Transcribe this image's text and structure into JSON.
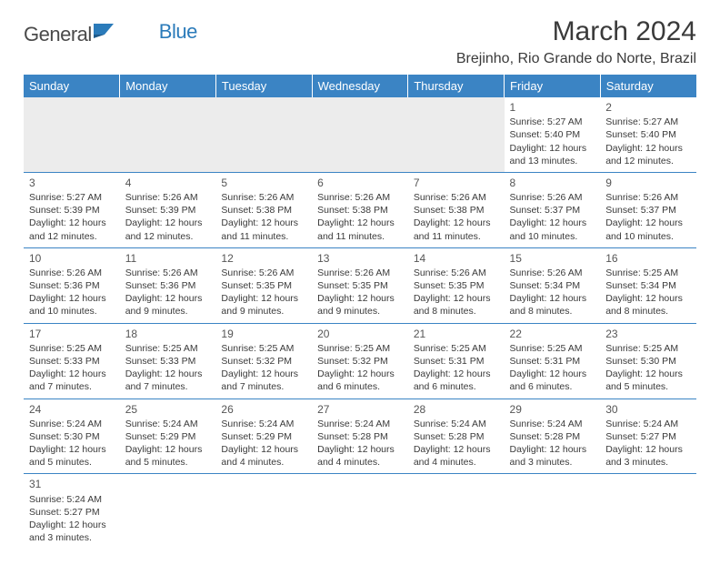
{
  "logo": {
    "text1": "General",
    "text2": "Blue"
  },
  "title": "March 2024",
  "location": "Brejinho, Rio Grande do Norte, Brazil",
  "columns": [
    "Sunday",
    "Monday",
    "Tuesday",
    "Wednesday",
    "Thursday",
    "Friday",
    "Saturday"
  ],
  "colors": {
    "header_bg": "#3b84c4",
    "header_text": "#ffffff",
    "logo_gray": "#4a4a4a",
    "logo_blue": "#2b7bba",
    "text": "#3a3a3a",
    "rule": "#3b84c4",
    "blank_row": "#ececec"
  },
  "weeks": [
    [
      null,
      null,
      null,
      null,
      null,
      {
        "day": "1",
        "sunrise": "Sunrise: 5:27 AM",
        "sunset": "Sunset: 5:40 PM",
        "daylight1": "Daylight: 12 hours",
        "daylight2": "and 13 minutes."
      },
      {
        "day": "2",
        "sunrise": "Sunrise: 5:27 AM",
        "sunset": "Sunset: 5:40 PM",
        "daylight1": "Daylight: 12 hours",
        "daylight2": "and 12 minutes."
      }
    ],
    [
      {
        "day": "3",
        "sunrise": "Sunrise: 5:27 AM",
        "sunset": "Sunset: 5:39 PM",
        "daylight1": "Daylight: 12 hours",
        "daylight2": "and 12 minutes."
      },
      {
        "day": "4",
        "sunrise": "Sunrise: 5:26 AM",
        "sunset": "Sunset: 5:39 PM",
        "daylight1": "Daylight: 12 hours",
        "daylight2": "and 12 minutes."
      },
      {
        "day": "5",
        "sunrise": "Sunrise: 5:26 AM",
        "sunset": "Sunset: 5:38 PM",
        "daylight1": "Daylight: 12 hours",
        "daylight2": "and 11 minutes."
      },
      {
        "day": "6",
        "sunrise": "Sunrise: 5:26 AM",
        "sunset": "Sunset: 5:38 PM",
        "daylight1": "Daylight: 12 hours",
        "daylight2": "and 11 minutes."
      },
      {
        "day": "7",
        "sunrise": "Sunrise: 5:26 AM",
        "sunset": "Sunset: 5:38 PM",
        "daylight1": "Daylight: 12 hours",
        "daylight2": "and 11 minutes."
      },
      {
        "day": "8",
        "sunrise": "Sunrise: 5:26 AM",
        "sunset": "Sunset: 5:37 PM",
        "daylight1": "Daylight: 12 hours",
        "daylight2": "and 10 minutes."
      },
      {
        "day": "9",
        "sunrise": "Sunrise: 5:26 AM",
        "sunset": "Sunset: 5:37 PM",
        "daylight1": "Daylight: 12 hours",
        "daylight2": "and 10 minutes."
      }
    ],
    [
      {
        "day": "10",
        "sunrise": "Sunrise: 5:26 AM",
        "sunset": "Sunset: 5:36 PM",
        "daylight1": "Daylight: 12 hours",
        "daylight2": "and 10 minutes."
      },
      {
        "day": "11",
        "sunrise": "Sunrise: 5:26 AM",
        "sunset": "Sunset: 5:36 PM",
        "daylight1": "Daylight: 12 hours",
        "daylight2": "and 9 minutes."
      },
      {
        "day": "12",
        "sunrise": "Sunrise: 5:26 AM",
        "sunset": "Sunset: 5:35 PM",
        "daylight1": "Daylight: 12 hours",
        "daylight2": "and 9 minutes."
      },
      {
        "day": "13",
        "sunrise": "Sunrise: 5:26 AM",
        "sunset": "Sunset: 5:35 PM",
        "daylight1": "Daylight: 12 hours",
        "daylight2": "and 9 minutes."
      },
      {
        "day": "14",
        "sunrise": "Sunrise: 5:26 AM",
        "sunset": "Sunset: 5:35 PM",
        "daylight1": "Daylight: 12 hours",
        "daylight2": "and 8 minutes."
      },
      {
        "day": "15",
        "sunrise": "Sunrise: 5:26 AM",
        "sunset": "Sunset: 5:34 PM",
        "daylight1": "Daylight: 12 hours",
        "daylight2": "and 8 minutes."
      },
      {
        "day": "16",
        "sunrise": "Sunrise: 5:25 AM",
        "sunset": "Sunset: 5:34 PM",
        "daylight1": "Daylight: 12 hours",
        "daylight2": "and 8 minutes."
      }
    ],
    [
      {
        "day": "17",
        "sunrise": "Sunrise: 5:25 AM",
        "sunset": "Sunset: 5:33 PM",
        "daylight1": "Daylight: 12 hours",
        "daylight2": "and 7 minutes."
      },
      {
        "day": "18",
        "sunrise": "Sunrise: 5:25 AM",
        "sunset": "Sunset: 5:33 PM",
        "daylight1": "Daylight: 12 hours",
        "daylight2": "and 7 minutes."
      },
      {
        "day": "19",
        "sunrise": "Sunrise: 5:25 AM",
        "sunset": "Sunset: 5:32 PM",
        "daylight1": "Daylight: 12 hours",
        "daylight2": "and 7 minutes."
      },
      {
        "day": "20",
        "sunrise": "Sunrise: 5:25 AM",
        "sunset": "Sunset: 5:32 PM",
        "daylight1": "Daylight: 12 hours",
        "daylight2": "and 6 minutes."
      },
      {
        "day": "21",
        "sunrise": "Sunrise: 5:25 AM",
        "sunset": "Sunset: 5:31 PM",
        "daylight1": "Daylight: 12 hours",
        "daylight2": "and 6 minutes."
      },
      {
        "day": "22",
        "sunrise": "Sunrise: 5:25 AM",
        "sunset": "Sunset: 5:31 PM",
        "daylight1": "Daylight: 12 hours",
        "daylight2": "and 6 minutes."
      },
      {
        "day": "23",
        "sunrise": "Sunrise: 5:25 AM",
        "sunset": "Sunset: 5:30 PM",
        "daylight1": "Daylight: 12 hours",
        "daylight2": "and 5 minutes."
      }
    ],
    [
      {
        "day": "24",
        "sunrise": "Sunrise: 5:24 AM",
        "sunset": "Sunset: 5:30 PM",
        "daylight1": "Daylight: 12 hours",
        "daylight2": "and 5 minutes."
      },
      {
        "day": "25",
        "sunrise": "Sunrise: 5:24 AM",
        "sunset": "Sunset: 5:29 PM",
        "daylight1": "Daylight: 12 hours",
        "daylight2": "and 5 minutes."
      },
      {
        "day": "26",
        "sunrise": "Sunrise: 5:24 AM",
        "sunset": "Sunset: 5:29 PM",
        "daylight1": "Daylight: 12 hours",
        "daylight2": "and 4 minutes."
      },
      {
        "day": "27",
        "sunrise": "Sunrise: 5:24 AM",
        "sunset": "Sunset: 5:28 PM",
        "daylight1": "Daylight: 12 hours",
        "daylight2": "and 4 minutes."
      },
      {
        "day": "28",
        "sunrise": "Sunrise: 5:24 AM",
        "sunset": "Sunset: 5:28 PM",
        "daylight1": "Daylight: 12 hours",
        "daylight2": "and 4 minutes."
      },
      {
        "day": "29",
        "sunrise": "Sunrise: 5:24 AM",
        "sunset": "Sunset: 5:28 PM",
        "daylight1": "Daylight: 12 hours",
        "daylight2": "and 3 minutes."
      },
      {
        "day": "30",
        "sunrise": "Sunrise: 5:24 AM",
        "sunset": "Sunset: 5:27 PM",
        "daylight1": "Daylight: 12 hours",
        "daylight2": "and 3 minutes."
      }
    ],
    [
      {
        "day": "31",
        "sunrise": "Sunrise: 5:24 AM",
        "sunset": "Sunset: 5:27 PM",
        "daylight1": "Daylight: 12 hours",
        "daylight2": "and 3 minutes."
      },
      null,
      null,
      null,
      null,
      null,
      null
    ]
  ]
}
